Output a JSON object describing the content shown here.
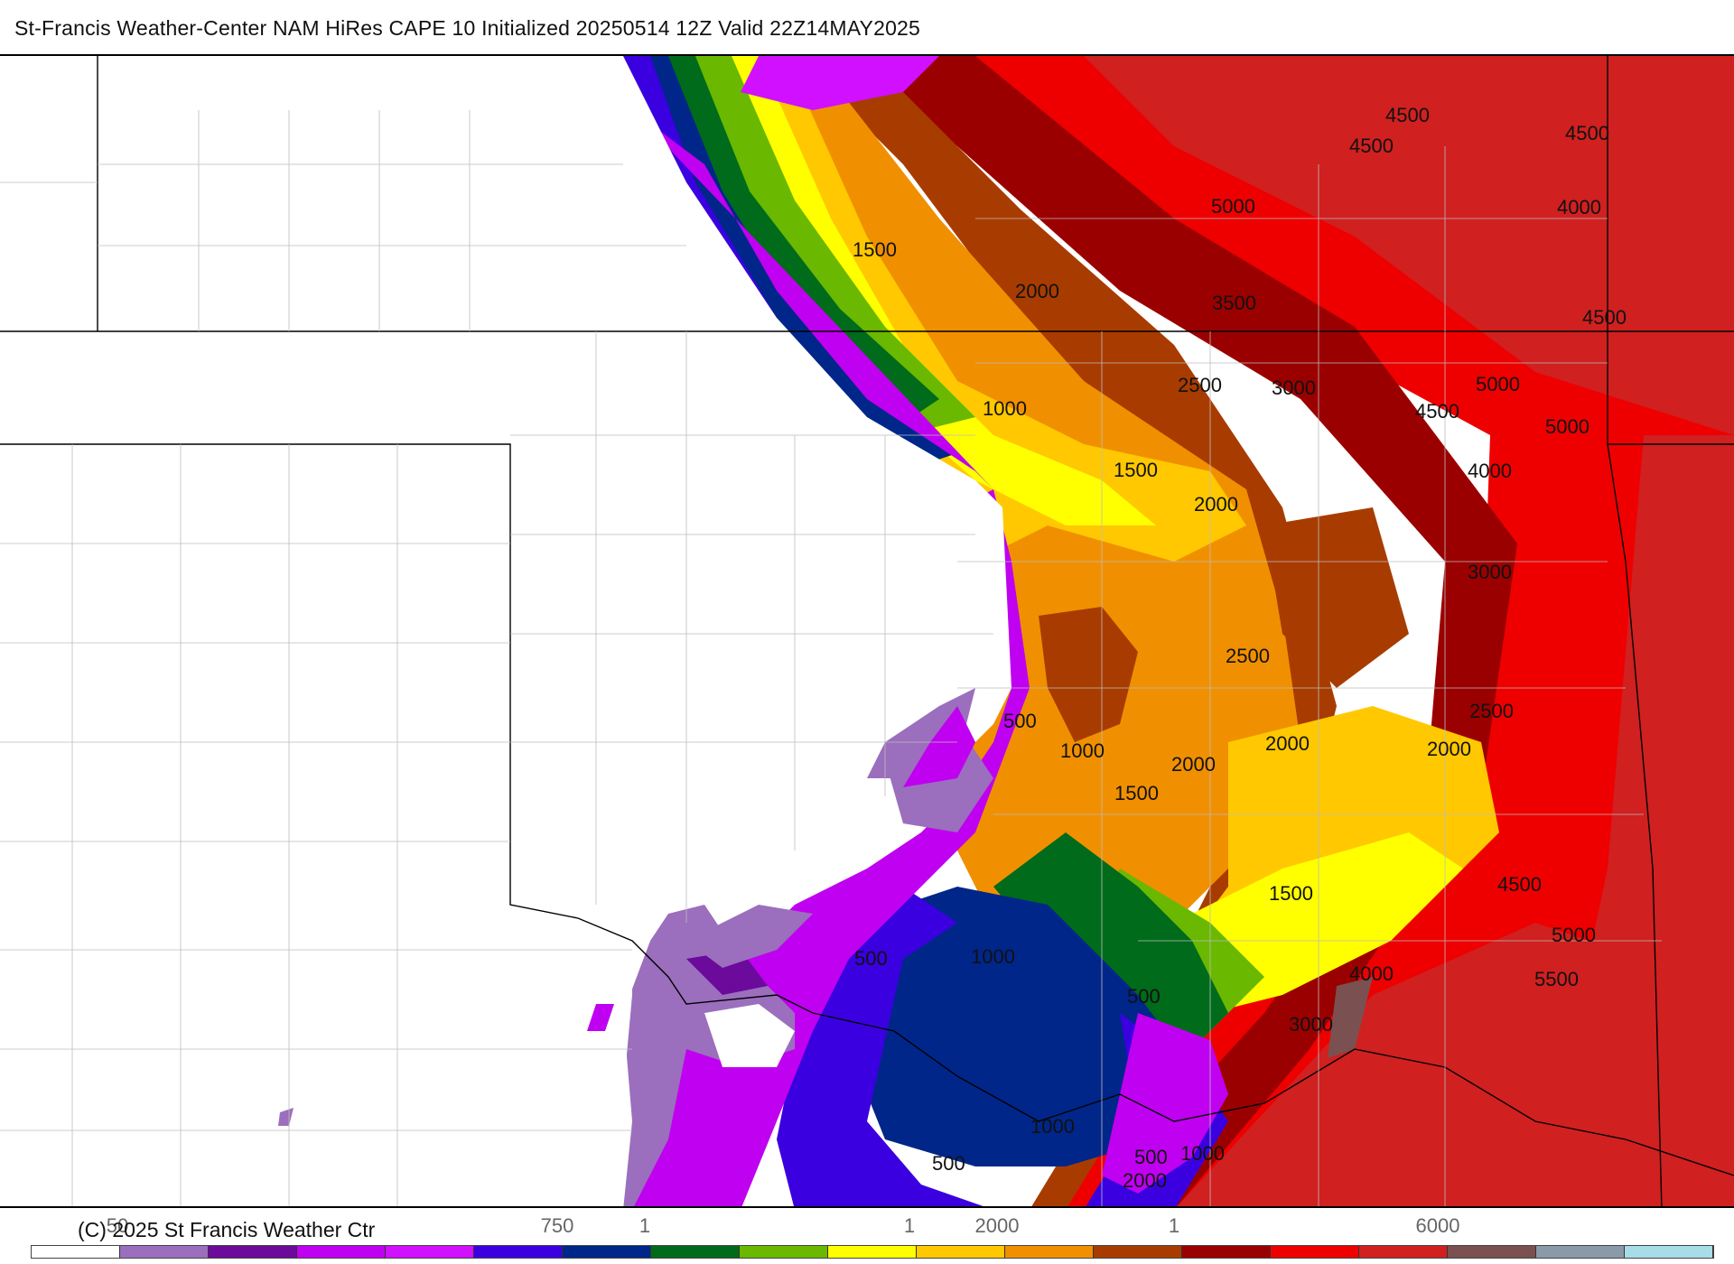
{
  "header": {
    "title": "St-Francis Weather-Center NAM HiRes CAPE  10 Initialized 20250514 12Z Valid 22Z14MAY2025"
  },
  "map": {
    "contour_labels": [
      {
        "text": "4500"
      },
      {
        "text": "4500"
      },
      {
        "text": "4500"
      },
      {
        "text": "5000"
      },
      {
        "text": "4000"
      },
      {
        "text": "1500"
      },
      {
        "text": "2000"
      },
      {
        "text": "3500"
      },
      {
        "text": "4500"
      },
      {
        "text": "2500"
      },
      {
        "text": "3000"
      },
      {
        "text": "5000"
      },
      {
        "text": "4500"
      },
      {
        "text": "5000"
      },
      {
        "text": "1000"
      },
      {
        "text": "1500"
      },
      {
        "text": "2000"
      },
      {
        "text": "4000"
      },
      {
        "text": "3000"
      },
      {
        "text": "2500"
      },
      {
        "text": "2500"
      },
      {
        "text": "500"
      },
      {
        "text": "1000"
      },
      {
        "text": "2000"
      },
      {
        "text": "2000"
      },
      {
        "text": "2000"
      },
      {
        "text": "1500"
      },
      {
        "text": "1500"
      },
      {
        "text": "4500"
      },
      {
        "text": "500"
      },
      {
        "text": "1000"
      },
      {
        "text": "5000"
      },
      {
        "text": "4000"
      },
      {
        "text": "5500"
      },
      {
        "text": "500"
      },
      {
        "text": "3000"
      },
      {
        "text": "1000"
      },
      {
        "text": "500"
      },
      {
        "text": "500"
      },
      {
        "text": "1000"
      },
      {
        "text": "2000"
      }
    ]
  },
  "footer": {
    "copyright": "(C) 2025 St Francis Weather Ctr",
    "tick_labels": [
      "50",
      "750",
      "1",
      "1",
      "2000",
      "1",
      "6000"
    ]
  },
  "legend": {
    "colors": [
      "#ffffff",
      "#9b6fbd",
      "#6b0a9b",
      "#c000f0",
      "#d010ff",
      "#3a00e0",
      "#00268a",
      "#006b1a",
      "#6ab800",
      "#ffff00",
      "#ffc800",
      "#f09000",
      "#a83c00",
      "#9b0000",
      "#ee0000",
      "#d02020",
      "#7a5050",
      "#8a9aa8",
      "#a8dce8"
    ]
  }
}
